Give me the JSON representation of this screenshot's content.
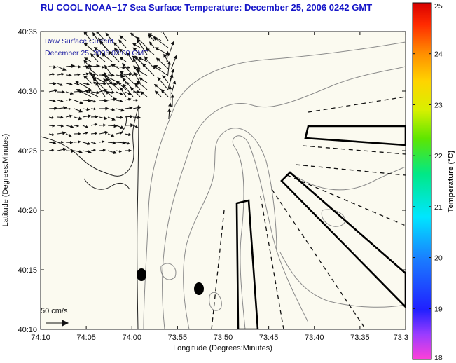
{
  "title": "RU COOL  NOAA−17  Sea Surface Temperature:  December 25, 2006 0242 GMT",
  "legend": {
    "line1": "Raw Surface Current",
    "line2": "December 25, 2006 02:00 GMT",
    "scale_label": "50 cm/s"
  },
  "axes": {
    "xlabel": "Longitude (Degrees:Minutes)",
    "ylabel": "Latitude (Degrees:Minutes)",
    "x_ticks": [
      "74:10",
      "74:05",
      "74:00",
      "73:55",
      "73:50",
      "73:45",
      "73:40",
      "73:35",
      "73:3"
    ],
    "y_ticks": [
      "40:35",
      "40:30",
      "40:25",
      "40:20",
      "40:15",
      "40:10"
    ]
  },
  "colorbar": {
    "label": "Temperature (°C)",
    "ticks": [
      "25",
      "24",
      "23",
      "22",
      "21",
      "20",
      "19",
      "18"
    ],
    "min": 18,
    "max": 25
  },
  "colors": {
    "title": "#1515c8",
    "legend_text": "#1a1aa0",
    "map_background": "#fbfaf0",
    "contour": "#8a8a8a",
    "coast": "#222222"
  },
  "icons": {
    "vectors": "arrow-field",
    "buoys": "filled-ellipse"
  }
}
